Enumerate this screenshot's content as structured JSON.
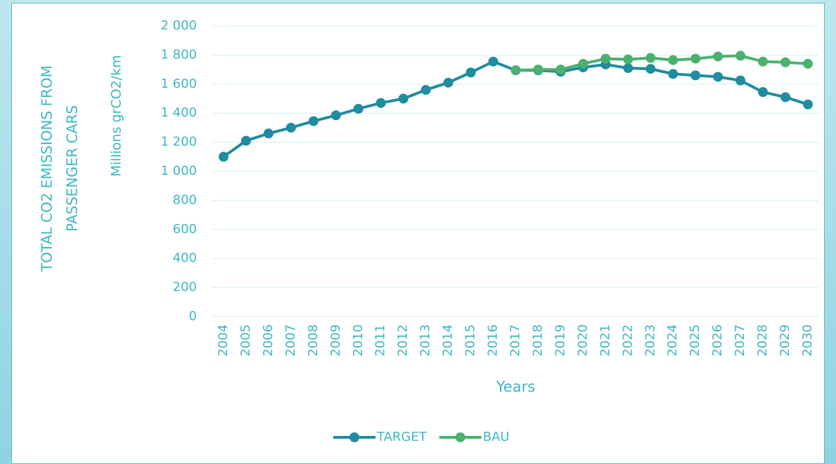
{
  "chart_data": {
    "type": "line",
    "ylabel_lines": [
      "TOTAL CO2 EMISSIONS FROM",
      "PASSENGER CARS"
    ],
    "ylabel2": "Millions grCO2/km",
    "xlabel": "Years",
    "categories": [
      "2004",
      "2005",
      "2006",
      "2007",
      "2008",
      "2009",
      "2010",
      "2011",
      "2012",
      "2013",
      "2014",
      "2015",
      "2016",
      "2017",
      "2018",
      "2019",
      "2020",
      "2021",
      "2022",
      "2023",
      "2024",
      "2025",
      "2026",
      "2027",
      "2028",
      "2029",
      "2030"
    ],
    "series": [
      {
        "name": "TARGET",
        "color": "#1f8c9f",
        "values": [
          1100,
          1210,
          1260,
          1300,
          1345,
          1385,
          1430,
          1470,
          1500,
          1560,
          1610,
          1680,
          1755,
          1695,
          1695,
          1685,
          1715,
          1735,
          1710,
          1705,
          1670,
          1660,
          1650,
          1625,
          1545,
          1510,
          1460
        ]
      },
      {
        "name": "BAU",
        "color": "#4cb06f",
        "values": [
          null,
          null,
          null,
          null,
          null,
          null,
          null,
          null,
          null,
          null,
          null,
          null,
          null,
          1695,
          1700,
          1700,
          1740,
          1775,
          1770,
          1780,
          1765,
          1775,
          1790,
          1795,
          1755,
          1750,
          1740
        ]
      }
    ],
    "ylim": [
      0,
      2000
    ],
    "yticks": [
      0,
      200,
      400,
      600,
      800,
      {
        "value": 1000,
        "label": "1 000"
      },
      {
        "value": 1200,
        "label": "1 200"
      },
      {
        "value": 1400,
        "label": "1 400"
      },
      {
        "value": 1600,
        "label": "1 600"
      },
      {
        "value": 1800,
        "label": "1 800"
      },
      {
        "value": 2000,
        "label": "2 000"
      }
    ],
    "grid": true,
    "legend": "bottom"
  }
}
